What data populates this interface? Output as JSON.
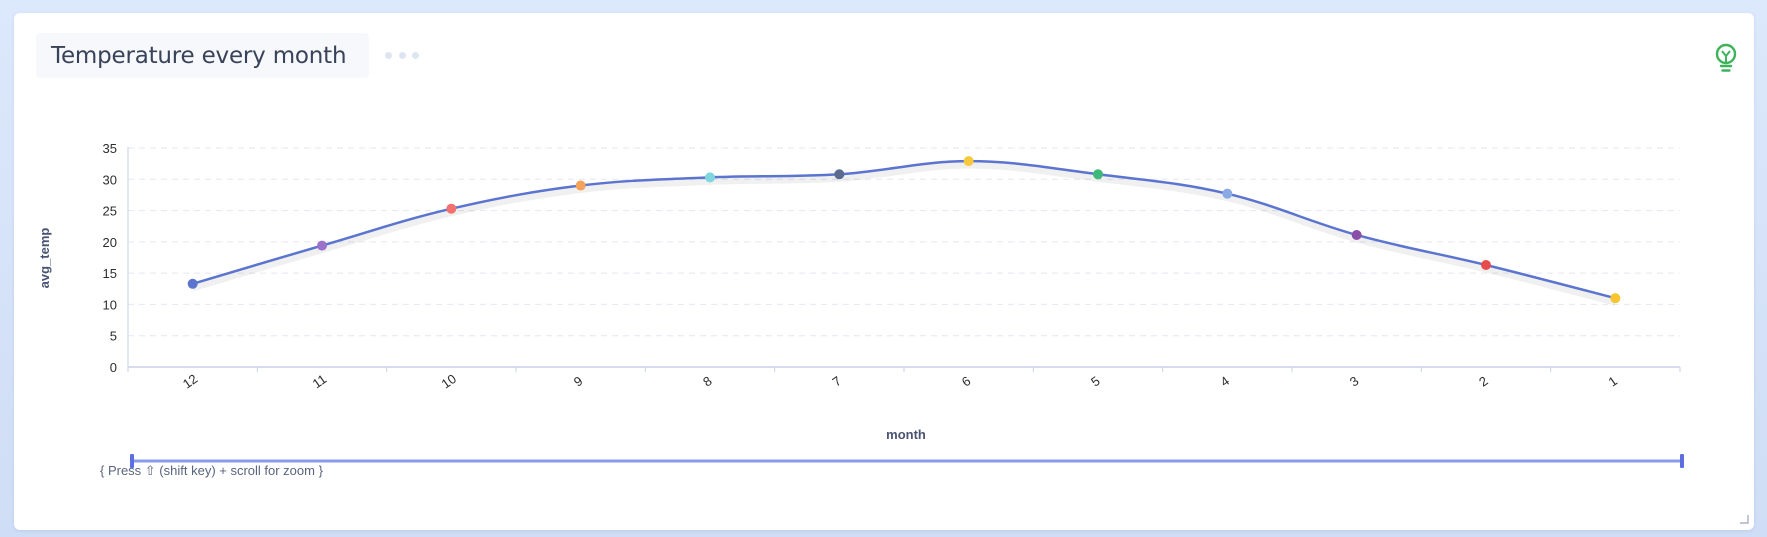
{
  "header": {
    "title": "Temperature every month",
    "more_icon": "more-dots-icon",
    "insight_icon": "lightbulb-icon"
  },
  "colors": {
    "line": "#5b74cf",
    "grid": "#e3e7f1",
    "axis": "#c9d1e8",
    "zoom_bar": "#8a9bec",
    "zoom_handle": "#5d6fe0",
    "bulb": "#3fb35c",
    "point_colors": [
      "#5b74cf",
      "#9b72c9",
      "#f2716e",
      "#f4a259",
      "#7ed6df",
      "#5b6b8f",
      "#f8c93c",
      "#3fb97a",
      "#8aaae5",
      "#8b4ea6",
      "#e84b4b",
      "#f6c531"
    ]
  },
  "zoom": {
    "hint": "{ Press ⇧ (shift key) + scroll for zoom }"
  },
  "chart_data": {
    "type": "line",
    "smooth": true,
    "title": "",
    "xlabel": "month",
    "ylabel": "avg_temp",
    "categories": [
      "12",
      "11",
      "10",
      "9",
      "8",
      "7",
      "6",
      "5",
      "4",
      "3",
      "2",
      "1"
    ],
    "values": [
      13.3,
      19.4,
      25.3,
      29.0,
      30.3,
      30.8,
      32.9,
      30.8,
      27.7,
      21.1,
      16.3,
      11.0
    ],
    "ylim": [
      0,
      35
    ],
    "yticks": [
      0,
      5,
      10,
      15,
      20,
      25,
      30,
      35
    ],
    "grid": true,
    "legend": "none"
  }
}
